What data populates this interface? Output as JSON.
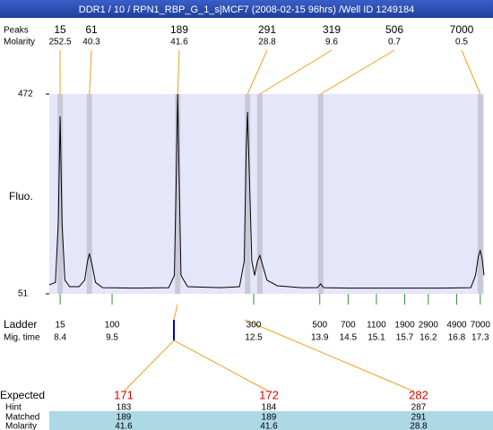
{
  "header": {
    "title": "DDR1 / 10 / RPN1_RBP_G_1_s|MCF7 (2008-02-15 96hrs) /Well ID 1249184"
  },
  "chart_data": {
    "type": "line",
    "y_label": "Fluo.",
    "ylim": [
      51,
      472
    ],
    "yticks": [
      51,
      472
    ],
    "xlim": [
      8.17,
      17.38
    ],
    "series": [
      {
        "color": "#000000",
        "x": [
          8.17,
          8.3,
          8.36,
          8.4,
          8.44,
          8.5,
          8.6,
          8.8,
          8.92,
          8.98,
          9.02,
          9.07,
          9.15,
          9.3,
          10.0,
          10.7,
          10.82,
          10.86,
          10.89,
          10.92,
          10.96,
          11.1,
          11.8,
          12.2,
          12.3,
          12.34,
          12.37,
          12.4,
          12.46,
          12.52,
          12.58,
          12.63,
          12.68,
          12.78,
          13.0,
          13.5,
          13.85,
          13.92,
          13.98,
          14.5,
          15.5,
          16.5,
          17.1,
          17.2,
          17.26,
          17.3,
          17.34,
          17.38
        ],
        "values": [
          70,
          75,
          200,
          425,
          200,
          80,
          66,
          66,
          80,
          120,
          136,
          115,
          75,
          64,
          63,
          64,
          90,
          300,
          472,
          300,
          90,
          66,
          64,
          66,
          120,
          350,
          434,
          330,
          120,
          90,
          120,
          132,
          115,
          80,
          68,
          64,
          64,
          72,
          64,
          63,
          63,
          63,
          64,
          90,
          130,
          142,
          125,
          90
        ]
      }
    ],
    "peaks": {
      "label": "Peaks",
      "molarity_label": "Molarity",
      "sizes": [
        15,
        61,
        189,
        291,
        319,
        506,
        7000
      ],
      "molarity": [
        252.5,
        40.3,
        41.6,
        28.8,
        9.6,
        0.7,
        0.5
      ],
      "x": [
        8.4,
        9.02,
        10.89,
        12.37,
        12.63,
        13.92,
        17.3
      ]
    },
    "ladder": {
      "label": "Ladder",
      "time_label": "Mig. time",
      "sizes": [
        15,
        100,
        300,
        500,
        700,
        1100,
        1900,
        2900,
        4900,
        7000
      ],
      "x": [
        8.4,
        9.5,
        12.5,
        13.9,
        14.5,
        15.1,
        15.7,
        16.2,
        16.8,
        17.3
      ]
    }
  },
  "expected": {
    "labels": [
      "Expected",
      "Hint",
      "Matched",
      "Molarity"
    ],
    "columns": [
      {
        "expected": 171,
        "hint": 183,
        "matched": 189,
        "molarity": 41.6
      },
      {
        "expected": 172,
        "hint": 184,
        "matched": 189,
        "molarity": 41.6
      },
      {
        "expected": 282,
        "hint": 287,
        "matched": 291,
        "molarity": 28.8
      }
    ]
  }
}
